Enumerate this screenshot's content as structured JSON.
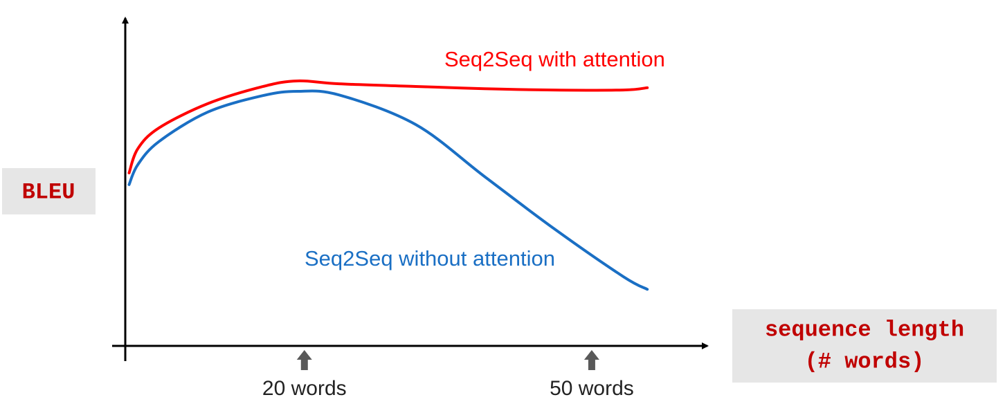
{
  "chart_data": {
    "type": "line",
    "y_label": "BLEU",
    "x_label": [
      "sequence length",
      "(# words)"
    ],
    "x": [
      1.7,
      2.6,
      4.8,
      9.9,
      15.7,
      19.3,
      23.6,
      31.6,
      38.8,
      46.0,
      53.3,
      55.8
    ],
    "series": [
      {
        "name": "Seq2Seq with attention",
        "color": "#ff0000",
        "values": [
          53.2,
          60.6,
          67.0,
          74.5,
          79.8,
          81.5,
          80.6,
          79.8,
          79.1,
          78.7,
          78.7,
          79.4
        ]
      },
      {
        "name": "Seq2Seq without attention",
        "color": "#1a6fc4",
        "values": [
          49.6,
          55.7,
          62.8,
          71.9,
          77.0,
          78.3,
          77.2,
          68.1,
          52.1,
          36.2,
          21.3,
          17.4
        ]
      }
    ],
    "xlim": [
      0,
      62
    ],
    "ylim": [
      0,
      100
    ],
    "xticks": [
      {
        "value": 20,
        "label": "20 words"
      },
      {
        "value": 50,
        "label": "50 words"
      }
    ]
  }
}
